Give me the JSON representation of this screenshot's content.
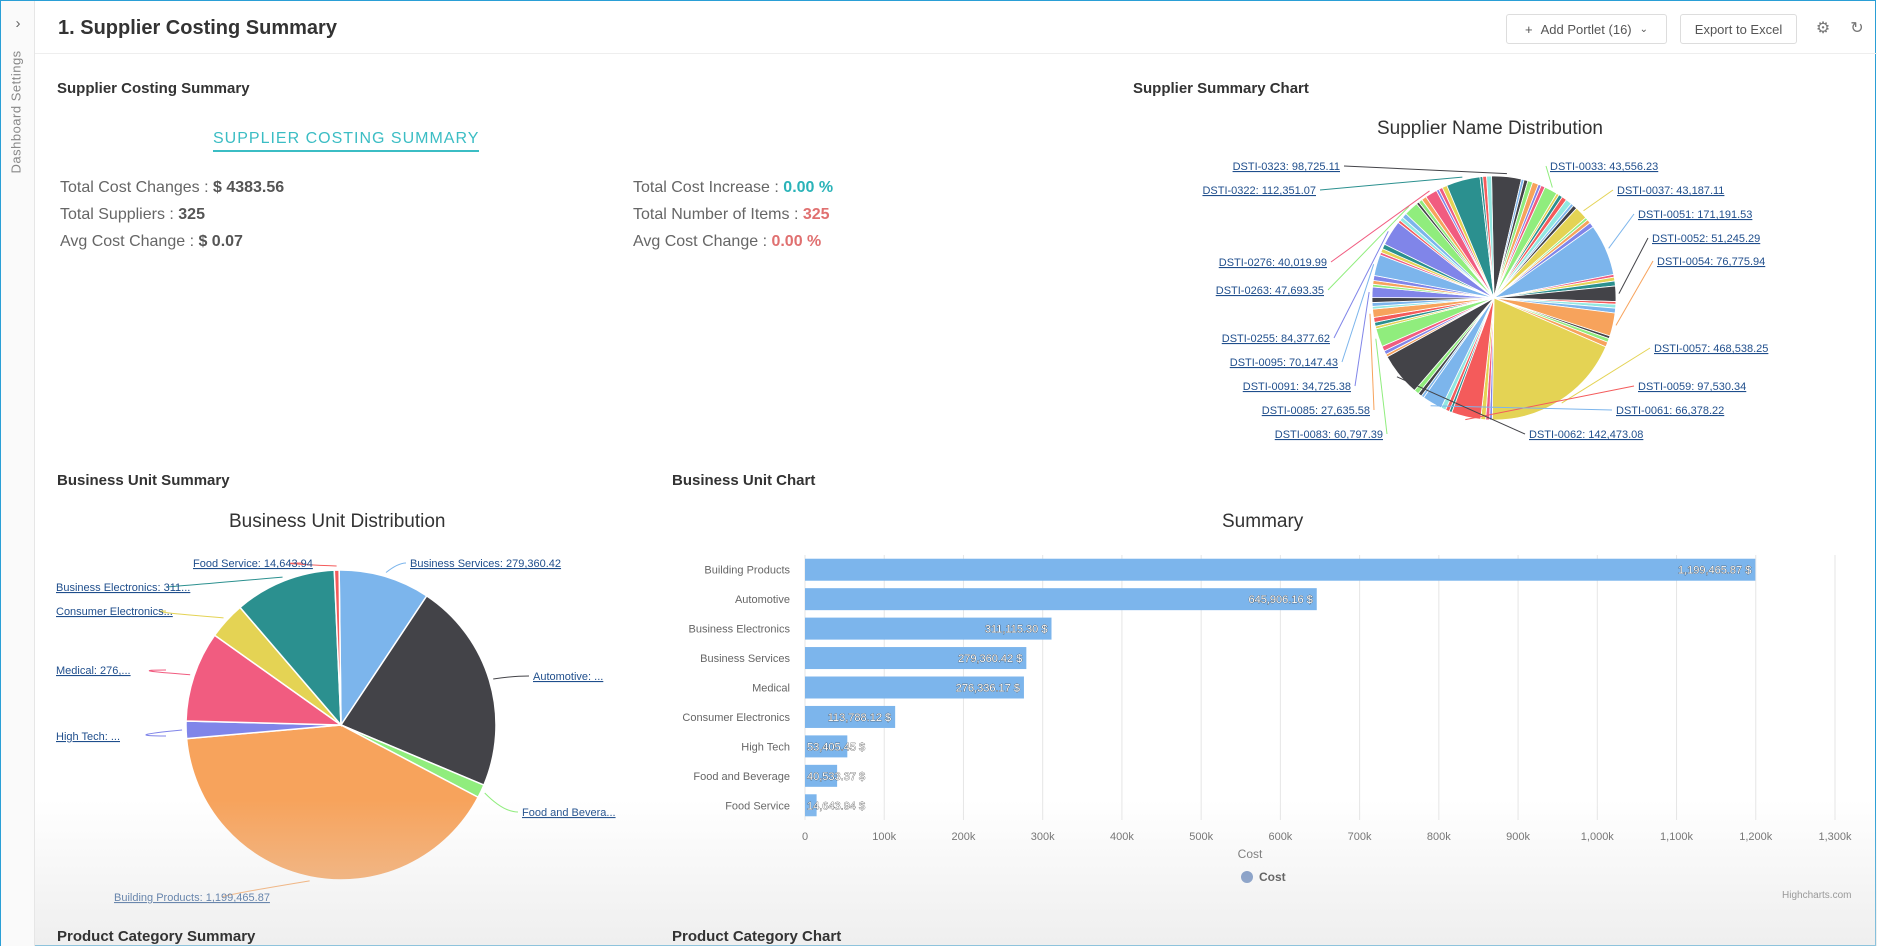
{
  "app": {
    "page_title": "1. Supplier Costing Summary",
    "rail_label": "Dashboard Settings",
    "add_portlet_label": "Add Portlet (16)",
    "export_label": "Export to Excel"
  },
  "icons": {
    "rail_toggle": "chevron-right-icon",
    "add": "plus-icon",
    "dropdown": "chevron-down-icon",
    "settings": "gear-icon",
    "refresh": "refresh-icon"
  },
  "colors": {
    "accent": "#3bbdc4",
    "positive": "#2ab3b8",
    "negative": "#e07070",
    "bar": "#7cb5ec"
  },
  "supplier_summary": {
    "section_title": "Supplier Costing Summary",
    "heading": "SUPPLIER COSTING SUMMARY",
    "stats": [
      {
        "label": "Total Cost Changes : ",
        "value": "$ 4383.56"
      },
      {
        "label": "Total Suppliers : ",
        "value": "325"
      },
      {
        "label": "Avg Cost Change : ",
        "value": "$ 0.07"
      },
      {
        "label": "Total Cost Increase : ",
        "value": "0.00 %"
      },
      {
        "label": "Total Number of Items : ",
        "value": "325"
      },
      {
        "label": "Avg Cost Change : ",
        "value": "0.00 %"
      }
    ]
  },
  "supplier_chart": {
    "section_title": "Supplier Summary Chart",
    "title": "Supplier Name Distribution"
  },
  "business_unit_summary": {
    "section_title": "Business Unit Summary",
    "title": "Business Unit Distribution"
  },
  "business_unit_chart": {
    "section_title": "Business Unit Chart",
    "title": "Summary",
    "xlabel": "Cost",
    "legend": "Cost"
  },
  "footer": {
    "credit": "Highcharts.com",
    "product_category_summary": "Product Category Summary",
    "product_category_chart": "Product Category Chart"
  },
  "chart_data": [
    {
      "type": "pie",
      "title": "Supplier Name Distribution",
      "labeled_slices": [
        {
          "name": "DSTI-0323",
          "label": "DSTI-0323: 98,725.11",
          "value": 98725.11
        },
        {
          "name": "DSTI-0033",
          "label": "DSTI-0033: 43,556.23",
          "value": 43556.23
        },
        {
          "name": "DSTI-0322",
          "label": "DSTI-0322: 112,351.07",
          "value": 112351.07
        },
        {
          "name": "DSTI-0037",
          "label": "DSTI-0037: 43,187.11",
          "value": 43187.11
        },
        {
          "name": "DSTI-0051",
          "label": "DSTI-0051: 171,191.53",
          "value": 171191.53
        },
        {
          "name": "DSTI-0052",
          "label": "DSTI-0052: 51,245.29",
          "value": 51245.29
        },
        {
          "name": "DSTI-0054",
          "label": "DSTI-0054: 76,775.94",
          "value": 76775.94
        },
        {
          "name": "DSTI-0276",
          "label": "DSTI-0276: 40,019.99",
          "value": 40019.99
        },
        {
          "name": "DSTI-0263",
          "label": "DSTI-0263: 47,693.35",
          "value": 47693.35
        },
        {
          "name": "DSTI-0057",
          "label": "DSTI-0057: 468,538.25",
          "value": 468538.25
        },
        {
          "name": "DSTI-0255",
          "label": "DSTI-0255: 84,377.62",
          "value": 84377.62
        },
        {
          "name": "DSTI-0095",
          "label": "DSTI-0095: 70,147.43",
          "value": 70147.43
        },
        {
          "name": "DSTI-0059",
          "label": "DSTI-0059: 97,530.34",
          "value": 97530.34
        },
        {
          "name": "DSTI-0091",
          "label": "DSTI-0091: 34,725.38",
          "value": 34725.38
        },
        {
          "name": "DSTI-0061",
          "label": "DSTI-0061: 66,378.22",
          "value": 66378.22
        },
        {
          "name": "DSTI-0085",
          "label": "DSTI-0085: 27,635.58",
          "value": 27635.58
        },
        {
          "name": "DSTI-0083",
          "label": "DSTI-0083: 60,797.39",
          "value": 60797.39
        },
        {
          "name": "DSTI-0062",
          "label": "DSTI-0062: 142,473.08",
          "value": 142473.08
        }
      ]
    },
    {
      "type": "pie",
      "title": "Business Unit Distribution",
      "slices": [
        {
          "name": "Business Services",
          "label": "Business Services: 279,360.42",
          "value": 279360.42,
          "color": "#7cb5ec"
        },
        {
          "name": "Automotive",
          "label": "Automotive: ...",
          "value": 645906.16,
          "color": "#434348"
        },
        {
          "name": "Food and Beverage",
          "label": "Food and Bevera...",
          "value": 40533.37,
          "color": "#90ed7d"
        },
        {
          "name": "Building Products",
          "label": "Building Products: 1,199,465.87",
          "value": 1199465.87,
          "color": "#f7a35c"
        },
        {
          "name": "High Tech",
          "label": "High Tech: ...",
          "value": 53405.45,
          "color": "#8085e9"
        },
        {
          "name": "Medical",
          "label": "Medical: 276,...",
          "value": 276336.17,
          "color": "#f15c80"
        },
        {
          "name": "Consumer Electronics",
          "label": "Consumer Electronics...",
          "value": 113788.12,
          "color": "#e4d354"
        },
        {
          "name": "Business Electronics",
          "label": "Business Electronics: 311...",
          "value": 311115.3,
          "color": "#2b908f"
        },
        {
          "name": "Food Service",
          "label": "Food Service: 14,643.94",
          "value": 14643.94,
          "color": "#f45b5b"
        }
      ]
    },
    {
      "type": "bar",
      "title": "Summary",
      "categories": [
        "Building Products",
        "Automotive",
        "Business Electronics",
        "Business Services",
        "Medical",
        "Consumer Electronics",
        "High Tech",
        "Food and Beverage",
        "Food Service"
      ],
      "series": [
        {
          "name": "Cost",
          "values": [
            1199465.87,
            645906.16,
            311115.3,
            279360.42,
            276336.17,
            113788.12,
            53405.45,
            40533.37,
            14643.94
          ]
        }
      ],
      "data_labels": [
        "1,199,465.87 $",
        "645,906.16 $",
        "311,115.30 $",
        "279,360.42 $",
        "276,336.17 $",
        "113,788.12 $",
        "53,405.45 $",
        "40,533.37 $",
        "14,643.94 $"
      ],
      "xlabel": "Cost",
      "xlim": [
        0,
        1300000
      ],
      "tick_labels": [
        "0",
        "100k",
        "200k",
        "300k",
        "400k",
        "500k",
        "600k",
        "700k",
        "800k",
        "900k",
        "1,000k",
        "1,100k",
        "1,200k",
        "1,300k"
      ],
      "grid": true,
      "legend": "bottom-center"
    }
  ]
}
